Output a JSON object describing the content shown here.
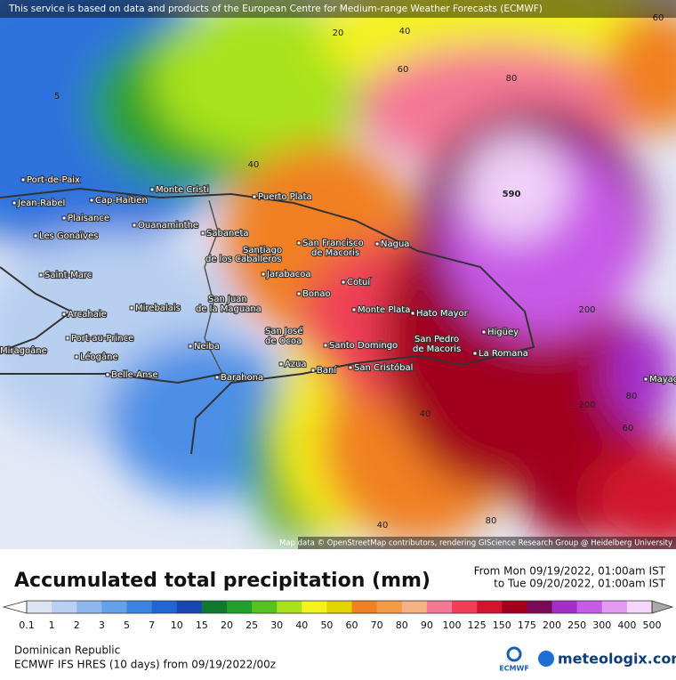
{
  "header": {
    "notice": "This service is based on data and products of the European Centre for Medium-range Weather Forecasts (ECMWF)"
  },
  "map": {
    "attribution": "Map data © OpenStreetMap contributors, rendering GIScience Research Group @ Heidelberg University",
    "places": [
      "Port-de-Paix",
      "Jean-Rabel",
      "Cap-Haïtien",
      "Monte Cristi",
      "Puerto Plata",
      "Plaisance",
      "Ouanaminthe",
      "Les Gonaïves",
      "Sabaneta",
      "Santiago",
      "de los Caballeros",
      "San Francisco",
      "de Macoris",
      "Nagua",
      "Saint-Marc",
      "Jarabacoa",
      "Cotuí",
      "Bonao",
      "San Juan",
      "de la Maguana",
      "Mirebalais",
      "Arcahaie",
      "Monte Plata",
      "Hato Mayor",
      "Higüey",
      "San José",
      "de Ocoa",
      "Port-au-Prince",
      "Santo Domingo",
      "San Pedro",
      "de Macoris",
      "Miragoâne",
      "Léogâne",
      "Neiba",
      "Azua",
      "Baní",
      "San Cristóbal",
      "La Romana",
      "Belle-Anse",
      "Barahona",
      "Mayag"
    ],
    "contour_labels": [
      "20",
      "40",
      "60",
      "80",
      "590",
      "200",
      "40",
      "60",
      "80",
      "5",
      "40",
      "60",
      "40",
      "200",
      "80"
    ]
  },
  "legend": {
    "title": "Accumulated total precipitation (mm)",
    "period_from": "From Mon 09/19/2022, 01:00am IST",
    "period_to": "to Tue 09/20/2022, 01:00am IST",
    "labels": [
      "0.1",
      "1",
      "2",
      "3",
      "5",
      "7",
      "10",
      "15",
      "20",
      "25",
      "30",
      "40",
      "50",
      "60",
      "70",
      "80",
      "90",
      "100",
      "125",
      "150",
      "175",
      "200",
      "250",
      "300",
      "400",
      "500"
    ],
    "colors": [
      "#ffffff",
      "#dde3f3",
      "#b9d0f2",
      "#8fb7ee",
      "#65a0ea",
      "#3d84e2",
      "#2166d6",
      "#1746b4",
      "#0f7a2e",
      "#20a02a",
      "#54c21f",
      "#a8e21c",
      "#f4f21e",
      "#e3d300",
      "#f08020",
      "#f59a45",
      "#f6b184",
      "#f47895",
      "#ee3f56",
      "#d1152e",
      "#a0001c",
      "#7a0a55",
      "#a42ec9",
      "#c85ae8",
      "#e39af3",
      "#f6d6fa",
      "#a8a8a8"
    ]
  },
  "footer": {
    "region": "Dominican Republic",
    "model": "ECMWF IFS HRES (10 days) from 09/19/2022/00z",
    "logo_small": "ECMWF",
    "logo": "meteologix.com"
  }
}
